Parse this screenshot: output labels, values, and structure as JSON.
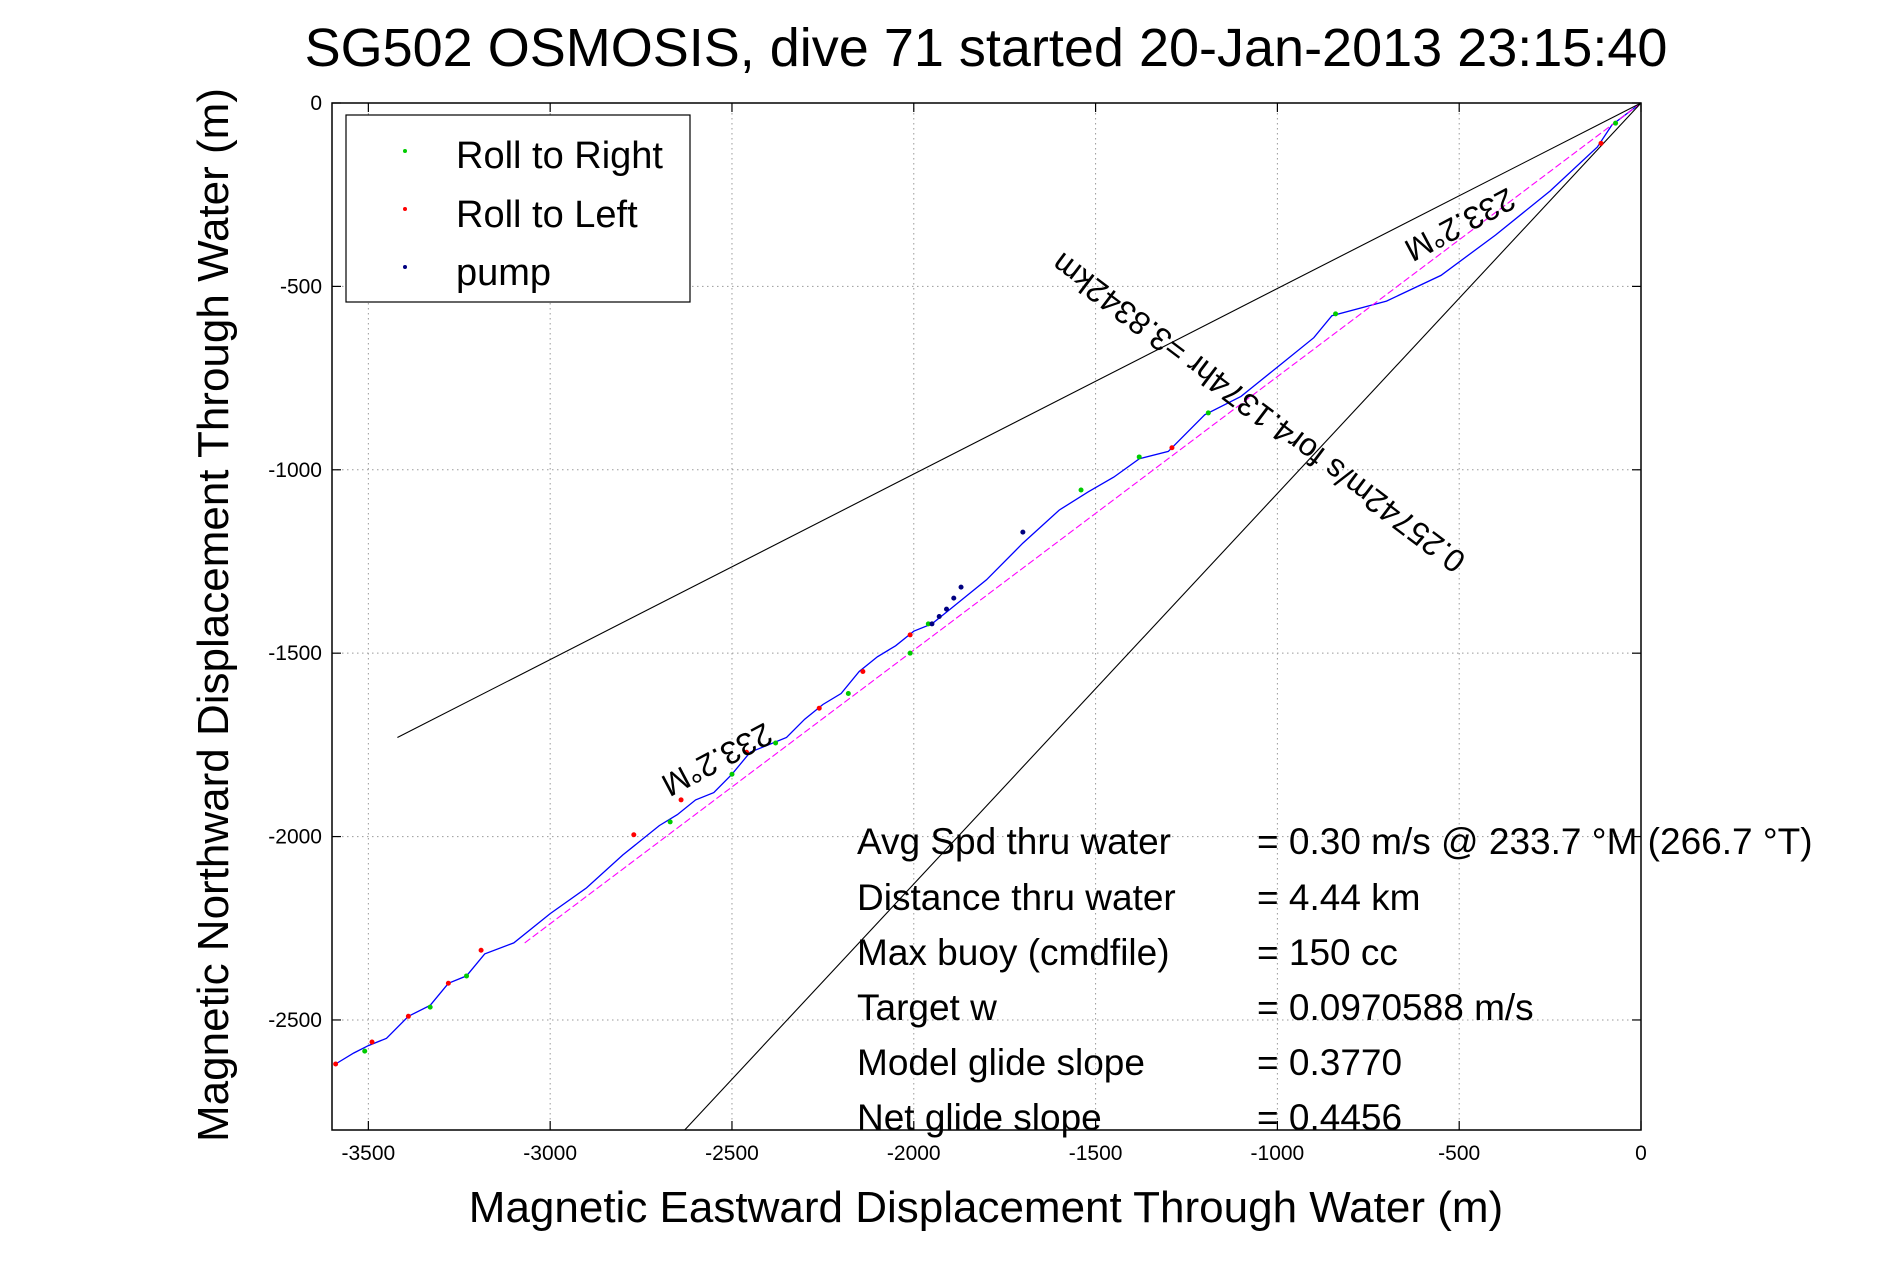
{
  "chart_data": {
    "type": "line",
    "title": "SG502 OSMOSIS, dive 71 started 20-Jan-2013 23:15:40",
    "xlabel": "Magnetic Eastward Displacement Through Water (m)",
    "ylabel": "Magnetic Northward Displacement Through Water (m)",
    "xlim": [
      -3600,
      0
    ],
    "ylim": [
      -2800,
      0
    ],
    "xticks": [
      -3500,
      -3000,
      -2500,
      -2000,
      -1500,
      -1000,
      -500,
      0
    ],
    "yticks": [
      0,
      -500,
      -1000,
      -1500,
      -2000,
      -2500
    ],
    "grid": true,
    "legend": {
      "position": "top-left",
      "entries": [
        {
          "label": "Roll to Right",
          "color": "#00cc00"
        },
        {
          "label": "Roll to Left",
          "color": "#ff0000"
        },
        {
          "label": "pump",
          "color": "#000080"
        }
      ]
    },
    "series": [
      {
        "color": "#0000ff",
        "x": [
          0,
          -80,
          -120,
          -250,
          -400,
          -550,
          -700,
          -850,
          -900,
          -1000,
          -1100,
          -1200,
          -1270,
          -1300,
          -1380,
          -1450,
          -1520,
          -1600,
          -1700,
          -1800,
          -1900,
          -1950,
          -2000,
          -2050,
          -2100,
          -2150,
          -2200,
          -2250,
          -2300,
          -2350,
          -2400,
          -2450,
          -2500,
          -2550,
          -2600,
          -2650,
          -2700,
          -2800,
          -2900,
          -3000,
          -3100,
          -3180,
          -3230,
          -3280,
          -3330,
          -3390,
          -3450,
          -3500,
          -3540,
          -3590
        ],
        "y": [
          0,
          -60,
          -120,
          -240,
          -360,
          -470,
          -540,
          -580,
          -640,
          -720,
          -800,
          -850,
          -920,
          -950,
          -970,
          -1020,
          -1060,
          -1110,
          -1200,
          -1300,
          -1380,
          -1420,
          -1440,
          -1480,
          -1510,
          -1550,
          -1610,
          -1640,
          -1680,
          -1730,
          -1750,
          -1770,
          -1830,
          -1880,
          -1900,
          -1940,
          -1970,
          -2050,
          -2140,
          -2210,
          -2290,
          -2320,
          -2380,
          -2400,
          -2460,
          -2490,
          -2550,
          -2570,
          -2590,
          -2620
        ]
      },
      {
        "color": "#ff00ff",
        "x": [
          0,
          -3070
        ],
        "y": [
          0,
          -2290
        ]
      },
      {
        "color": "#000000",
        "x": [
          0,
          -3420
        ],
        "y": [
          0,
          -1730
        ]
      },
      {
        "color": "#000000",
        "x": [
          0,
          -2630
        ],
        "y": [
          0,
          -2800
        ]
      }
    ],
    "markers": {
      "roll_right": {
        "color": "#00cc00",
        "x": [
          -70,
          -840,
          -1190,
          -1380,
          -1540,
          -1960,
          -2010,
          -2180,
          -2380,
          -2500,
          -2670,
          -3230,
          -3330,
          -3510
        ],
        "y": [
          -55,
          -575,
          -845,
          -965,
          -1055,
          -1420,
          -1500,
          -1610,
          -1745,
          -1830,
          -1960,
          -2380,
          -2465,
          -2585
        ]
      },
      "roll_left": {
        "color": "#ff0000",
        "x": [
          -110,
          -1290,
          -2010,
          -2140,
          -2260,
          -2460,
          -2640,
          -2770,
          -3190,
          -3280,
          -3390,
          -3490,
          -3590
        ],
        "y": [
          -110,
          -940,
          -1450,
          -1550,
          -1650,
          -1770,
          -1900,
          -1995,
          -2310,
          -2400,
          -2490,
          -2560,
          -2620
        ]
      },
      "pump": {
        "color": "#000080",
        "x": [
          -1700,
          -1870,
          -1890,
          -1910,
          -1930,
          -1950
        ],
        "y": [
          -1170,
          -1320,
          -1350,
          -1380,
          -1400,
          -1420
        ]
      }
    },
    "annotations": {
      "heading_upper": "233.2°M",
      "heading_lower": "233.2°M",
      "speed_line": "0.25742m/s for4.1374hr =3.8342km"
    },
    "stats": [
      {
        "label": "Avg Spd thru water",
        "value": "=  0.30 m/s @ 233.7 °M (266.7 °T)"
      },
      {
        "label": "Distance thru water",
        "value": "=  4.44 km"
      },
      {
        "label": "Max buoy (cmdfile)",
        "value": "= 150 cc"
      },
      {
        "label": "Target w",
        "value": "= 0.0970588 m/s"
      },
      {
        "label": "Model glide slope",
        "value": "= 0.3770"
      },
      {
        "label": "Net glide slope",
        "value": "= 0.4456"
      }
    ]
  }
}
